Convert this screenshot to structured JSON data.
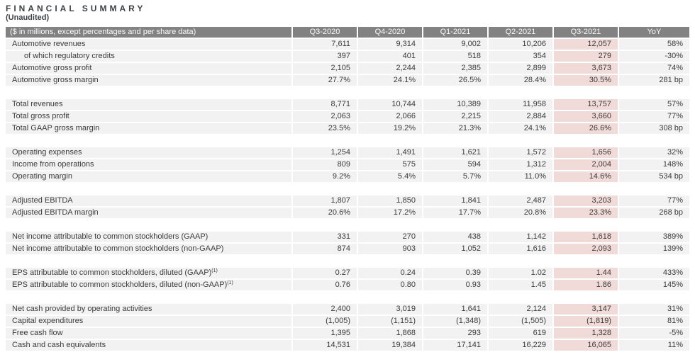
{
  "title": "FINANCIAL SUMMARY",
  "subtitle": "(Unaudited)",
  "colors": {
    "header_bg": "#828282",
    "header_text": "#fafafa",
    "row_bg": "#f2f2f2",
    "highlight_bg": "#f1dbd9",
    "text": "#3b3b3b",
    "title_text": "#3e4247"
  },
  "table": {
    "header": [
      "($ in millions, except percentages and per share data)",
      "Q3-2020",
      "Q4-2020",
      "Q1-2021",
      "Q2-2021",
      "Q3-2021",
      "YoY"
    ],
    "highlight_column": "Q3-2021",
    "highlight_value_index": 4,
    "sections": [
      {
        "rows": [
          {
            "label": "Automotive revenues",
            "indent": false,
            "sup": "",
            "values": [
              "7,611",
              "9,314",
              "9,002",
              "10,206",
              "12,057",
              "58%"
            ]
          },
          {
            "label": "of which regulatory credits",
            "indent": true,
            "sup": "",
            "values": [
              "397",
              "401",
              "518",
              "354",
              "279",
              "-30%"
            ]
          },
          {
            "label": "Automotive gross profit",
            "indent": false,
            "sup": "",
            "values": [
              "2,105",
              "2,244",
              "2,385",
              "2,899",
              "3,673",
              "74%"
            ]
          },
          {
            "label": "Automotive gross margin",
            "indent": false,
            "sup": "",
            "values": [
              "27.7%",
              "24.1%",
              "26.5%",
              "28.4%",
              "30.5%",
              "281 bp"
            ]
          }
        ]
      },
      {
        "rows": [
          {
            "label": "Total revenues",
            "indent": false,
            "sup": "",
            "values": [
              "8,771",
              "10,744",
              "10,389",
              "11,958",
              "13,757",
              "57%"
            ]
          },
          {
            "label": "Total gross profit",
            "indent": false,
            "sup": "",
            "values": [
              "2,063",
              "2,066",
              "2,215",
              "2,884",
              "3,660",
              "77%"
            ]
          },
          {
            "label": "Total GAAP gross margin",
            "indent": false,
            "sup": "",
            "values": [
              "23.5%",
              "19.2%",
              "21.3%",
              "24.1%",
              "26.6%",
              "308 bp"
            ]
          }
        ]
      },
      {
        "rows": [
          {
            "label": "Operating expenses",
            "indent": false,
            "sup": "",
            "values": [
              "1,254",
              "1,491",
              "1,621",
              "1,572",
              "1,656",
              "32%"
            ]
          },
          {
            "label": "Income from operations",
            "indent": false,
            "sup": "",
            "values": [
              "809",
              "575",
              "594",
              "1,312",
              "2,004",
              "148%"
            ]
          },
          {
            "label": "Operating margin",
            "indent": false,
            "sup": "",
            "values": [
              "9.2%",
              "5.4%",
              "5.7%",
              "11.0%",
              "14.6%",
              "534 bp"
            ]
          }
        ]
      },
      {
        "rows": [
          {
            "label": "Adjusted EBITDA",
            "indent": false,
            "sup": "",
            "values": [
              "1,807",
              "1,850",
              "1,841",
              "2,487",
              "3,203",
              "77%"
            ]
          },
          {
            "label": "Adjusted EBITDA margin",
            "indent": false,
            "sup": "",
            "values": [
              "20.6%",
              "17.2%",
              "17.7%",
              "20.8%",
              "23.3%",
              "268 bp"
            ]
          }
        ]
      },
      {
        "rows": [
          {
            "label": "Net income attributable to common stockholders (GAAP)",
            "indent": false,
            "sup": "",
            "values": [
              "331",
              "270",
              "438",
              "1,142",
              "1,618",
              "389%"
            ]
          },
          {
            "label": "Net income attributable to common stockholders (non-GAAP)",
            "indent": false,
            "sup": "",
            "values": [
              "874",
              "903",
              "1,052",
              "1,616",
              "2,093",
              "139%"
            ]
          }
        ]
      },
      {
        "rows": [
          {
            "label": "EPS attributable to common stockholders, diluted (GAAP)",
            "indent": false,
            "sup": "(1)",
            "values": [
              "0.27",
              "0.24",
              "0.39",
              "1.02",
              "1.44",
              "433%"
            ]
          },
          {
            "label": "EPS attributable to common stockholders, diluted (non-GAAP)",
            "indent": false,
            "sup": "(1)",
            "values": [
              "0.76",
              "0.80",
              "0.93",
              "1.45",
              "1.86",
              "145%"
            ]
          }
        ]
      },
      {
        "rows": [
          {
            "label": "Net cash provided by operating activities",
            "indent": false,
            "sup": "",
            "values": [
              "2,400",
              "3,019",
              "1,641",
              "2,124",
              "3,147",
              "31%"
            ]
          },
          {
            "label": "Capital expenditures",
            "indent": false,
            "sup": "",
            "values": [
              "(1,005)",
              "(1,151)",
              "(1,348)",
              "(1,505)",
              "(1,819)",
              "81%"
            ]
          },
          {
            "label": "Free cash flow",
            "indent": false,
            "sup": "",
            "values": [
              "1,395",
              "1,868",
              "293",
              "619",
              "1,328",
              "-5%"
            ]
          },
          {
            "label": "Cash and cash equivalents",
            "indent": false,
            "sup": "",
            "values": [
              "14,531",
              "19,384",
              "17,141",
              "16,229",
              "16,065",
              "11%"
            ]
          }
        ]
      }
    ]
  }
}
